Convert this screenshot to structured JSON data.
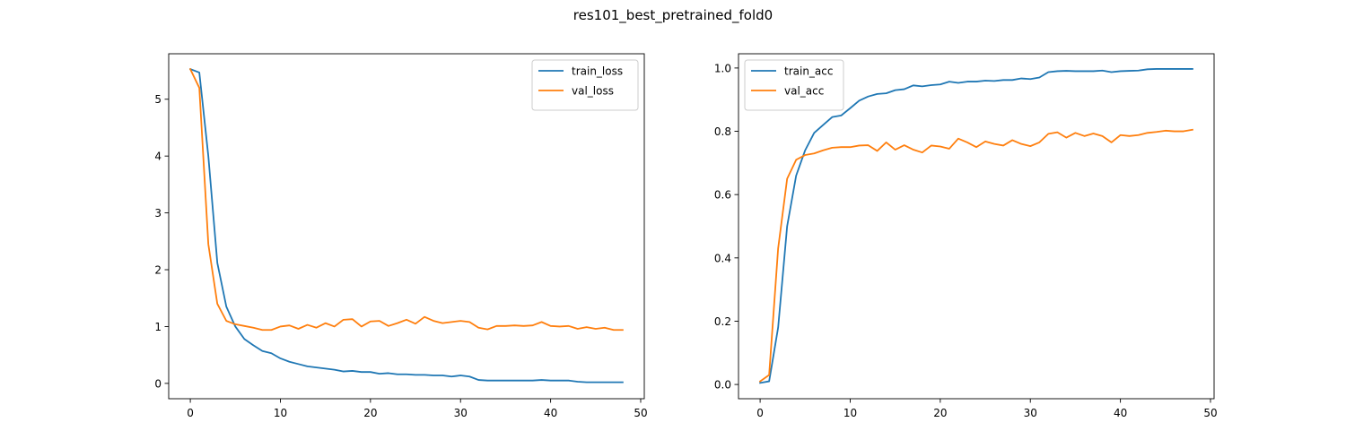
{
  "figure": {
    "title": "res101_best_pretrained_fold0"
  },
  "chart_data": [
    {
      "type": "line",
      "title": "",
      "xlabel": "",
      "ylabel": "",
      "xlim": [
        -2.4,
        50.4
      ],
      "ylim": [
        -0.27,
        5.8
      ],
      "xticks": [
        0,
        10,
        20,
        30,
        40,
        50
      ],
      "yticks": [
        0,
        1,
        2,
        3,
        4,
        5
      ],
      "grid": false,
      "legend_position": "upper-right",
      "series": [
        {
          "name": "train_loss",
          "color": "#1f77b4",
          "x": [
            0,
            1,
            2,
            3,
            4,
            5,
            6,
            7,
            8,
            9,
            10,
            11,
            12,
            13,
            14,
            15,
            16,
            17,
            18,
            19,
            20,
            21,
            22,
            23,
            24,
            25,
            26,
            27,
            28,
            29,
            30,
            31,
            32,
            33,
            34,
            35,
            36,
            37,
            38,
            39,
            40,
            41,
            42,
            43,
            44,
            45,
            46,
            47,
            48
          ],
          "values": [
            5.53,
            5.47,
            4.0,
            2.12,
            1.35,
            1.0,
            0.78,
            0.67,
            0.57,
            0.53,
            0.44,
            0.38,
            0.34,
            0.3,
            0.28,
            0.26,
            0.24,
            0.21,
            0.22,
            0.2,
            0.2,
            0.17,
            0.18,
            0.16,
            0.16,
            0.15,
            0.15,
            0.14,
            0.14,
            0.12,
            0.14,
            0.12,
            0.06,
            0.05,
            0.05,
            0.05,
            0.05,
            0.05,
            0.05,
            0.06,
            0.05,
            0.05,
            0.05,
            0.03,
            0.02,
            0.02,
            0.02,
            0.02,
            0.02
          ]
        },
        {
          "name": "val_loss",
          "color": "#ff7f0e",
          "x": [
            0,
            1,
            2,
            3,
            4,
            5,
            6,
            7,
            8,
            9,
            10,
            11,
            12,
            13,
            14,
            15,
            16,
            17,
            18,
            19,
            20,
            21,
            22,
            23,
            24,
            25,
            26,
            27,
            28,
            29,
            30,
            31,
            32,
            33,
            34,
            35,
            36,
            37,
            38,
            39,
            40,
            41,
            42,
            43,
            44,
            45,
            46,
            47,
            48
          ],
          "values": [
            5.53,
            5.2,
            2.45,
            1.4,
            1.1,
            1.04,
            1.01,
            0.98,
            0.94,
            0.94,
            1.0,
            1.02,
            0.96,
            1.03,
            0.98,
            1.06,
            1.0,
            1.12,
            1.13,
            1.0,
            1.09,
            1.1,
            1.01,
            1.06,
            1.12,
            1.05,
            1.17,
            1.1,
            1.06,
            1.08,
            1.1,
            1.08,
            0.98,
            0.95,
            1.01,
            1.01,
            1.02,
            1.01,
            1.02,
            1.08,
            1.01,
            1.0,
            1.01,
            0.96,
            0.99,
            0.96,
            0.98,
            0.94,
            0.94
          ]
        }
      ]
    },
    {
      "type": "line",
      "title": "",
      "xlabel": "",
      "ylabel": "",
      "xlim": [
        -2.4,
        50.4
      ],
      "ylim": [
        -0.045,
        1.045
      ],
      "xticks": [
        0,
        10,
        20,
        30,
        40,
        50
      ],
      "yticks": [
        0.0,
        0.2,
        0.4,
        0.6,
        0.8,
        1.0
      ],
      "ytick_labels": [
        "0.0",
        "0.2",
        "0.4",
        "0.6",
        "0.8",
        "1.0"
      ],
      "grid": false,
      "legend_position": "upper-left",
      "series": [
        {
          "name": "train_acc",
          "color": "#1f77b4",
          "x": [
            0,
            1,
            2,
            3,
            4,
            5,
            6,
            7,
            8,
            9,
            10,
            11,
            12,
            13,
            14,
            15,
            16,
            17,
            18,
            19,
            20,
            21,
            22,
            23,
            24,
            25,
            26,
            27,
            28,
            29,
            30,
            31,
            32,
            33,
            34,
            35,
            36,
            37,
            38,
            39,
            40,
            41,
            42,
            43,
            44,
            45,
            46,
            47,
            48
          ],
          "values": [
            0.005,
            0.01,
            0.18,
            0.5,
            0.66,
            0.74,
            0.795,
            0.82,
            0.845,
            0.85,
            0.873,
            0.897,
            0.91,
            0.918,
            0.92,
            0.93,
            0.933,
            0.945,
            0.942,
            0.946,
            0.948,
            0.957,
            0.953,
            0.957,
            0.957,
            0.96,
            0.959,
            0.962,
            0.962,
            0.967,
            0.965,
            0.97,
            0.987,
            0.99,
            0.991,
            0.99,
            0.99,
            0.99,
            0.992,
            0.987,
            0.99,
            0.991,
            0.992,
            0.996,
            0.997,
            0.997,
            0.997,
            0.997,
            0.997
          ]
        },
        {
          "name": "val_acc",
          "color": "#ff7f0e",
          "x": [
            0,
            1,
            2,
            3,
            4,
            5,
            6,
            7,
            8,
            9,
            10,
            11,
            12,
            13,
            14,
            15,
            16,
            17,
            18,
            19,
            20,
            21,
            22,
            23,
            24,
            25,
            26,
            27,
            28,
            29,
            30,
            31,
            32,
            33,
            34,
            35,
            36,
            37,
            38,
            39,
            40,
            41,
            42,
            43,
            44,
            45,
            46,
            47,
            48
          ],
          "values": [
            0.01,
            0.03,
            0.43,
            0.65,
            0.71,
            0.725,
            0.73,
            0.74,
            0.748,
            0.75,
            0.75,
            0.755,
            0.756,
            0.738,
            0.765,
            0.742,
            0.756,
            0.742,
            0.733,
            0.755,
            0.752,
            0.745,
            0.777,
            0.765,
            0.75,
            0.768,
            0.76,
            0.755,
            0.772,
            0.76,
            0.753,
            0.765,
            0.792,
            0.797,
            0.78,
            0.795,
            0.785,
            0.793,
            0.785,
            0.765,
            0.788,
            0.785,
            0.788,
            0.795,
            0.798,
            0.802,
            0.8,
            0.8,
            0.805
          ]
        }
      ]
    }
  ]
}
